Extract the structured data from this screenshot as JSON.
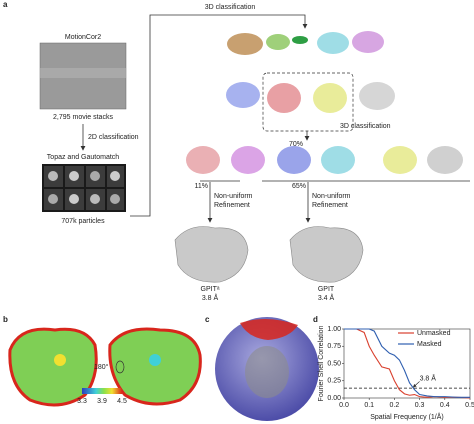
{
  "panel_labels": [
    "a",
    "b",
    "c",
    "d"
  ],
  "workflow": {
    "motioncor": "MotionCor2",
    "movie_stacks": "2,795 movie stacks",
    "classification_2d": "2D classification",
    "picking": "Topaz and Gautomatch",
    "particles": "707k particles",
    "classification_3d_first": "3D classification",
    "selected_percent": "70%",
    "classification_3d_second": "3D classification",
    "branches": [
      {
        "percent": "11%",
        "method_lines": [
          "Non-uniform",
          "Refinement"
        ],
        "name": "GPITᵃ",
        "resolution": "3.8 Å"
      },
      {
        "percent": "65%",
        "method_lines": [
          "Non-uniform",
          "Refinement"
        ],
        "name": "GPIT",
        "resolution": "3.4 Å"
      }
    ]
  },
  "local_resolution": {
    "rotation": "180°",
    "colorbar_ticks": [
      3.3,
      3.9,
      4.5
    ]
  },
  "chart_data": {
    "type": "line",
    "xlabel": "Spatial Frequency (1/Å)",
    "ylabel": "Fourier Shell Correlation",
    "x": [
      0,
      0.02,
      0.05,
      0.08,
      0.1,
      0.12,
      0.15,
      0.18,
      0.2,
      0.22,
      0.24,
      0.26,
      0.28,
      0.3,
      0.33,
      0.36,
      0.4,
      0.45,
      0.5
    ],
    "series": [
      {
        "name": "Unmasked",
        "color": "#d9402e",
        "values": [
          1,
          1,
          1,
          0.95,
          0.75,
          0.62,
          0.45,
          0.42,
          0.25,
          0.12,
          0.06,
          0.04,
          0.05,
          0.02,
          0.01,
          0.02,
          0.01,
          0.01,
          0
        ]
      },
      {
        "name": "Masked",
        "color": "#2f5fb0",
        "values": [
          1,
          1,
          1,
          1,
          1,
          0.97,
          0.75,
          0.65,
          0.62,
          0.55,
          0.4,
          0.22,
          0.12,
          0.05,
          0.03,
          0.02,
          0.02,
          0.01,
          0.01
        ]
      }
    ],
    "threshold": 0.143,
    "annotation": "3.8 Å",
    "xlim": [
      0,
      0.5
    ],
    "ylim": [
      0,
      1
    ],
    "xticks": [
      {
        "value": 0,
        "label": "0.0"
      },
      {
        "value": 0.1,
        "label": "0.1"
      },
      {
        "value": 0.2,
        "label": "0.2"
      },
      {
        "value": 0.3,
        "label": "0.3"
      },
      {
        "value": 0.4,
        "label": "0.4"
      },
      {
        "value": 0.5,
        "label": "0.5"
      }
    ],
    "yticks": [
      {
        "value": 0,
        "label": "0.00"
      },
      {
        "value": 0.25,
        "label": "0.25"
      },
      {
        "value": 0.5,
        "label": "0.50"
      },
      {
        "value": 0.75,
        "label": "0.75"
      },
      {
        "value": 1,
        "label": "1.00"
      }
    ],
    "legend": "top right"
  }
}
